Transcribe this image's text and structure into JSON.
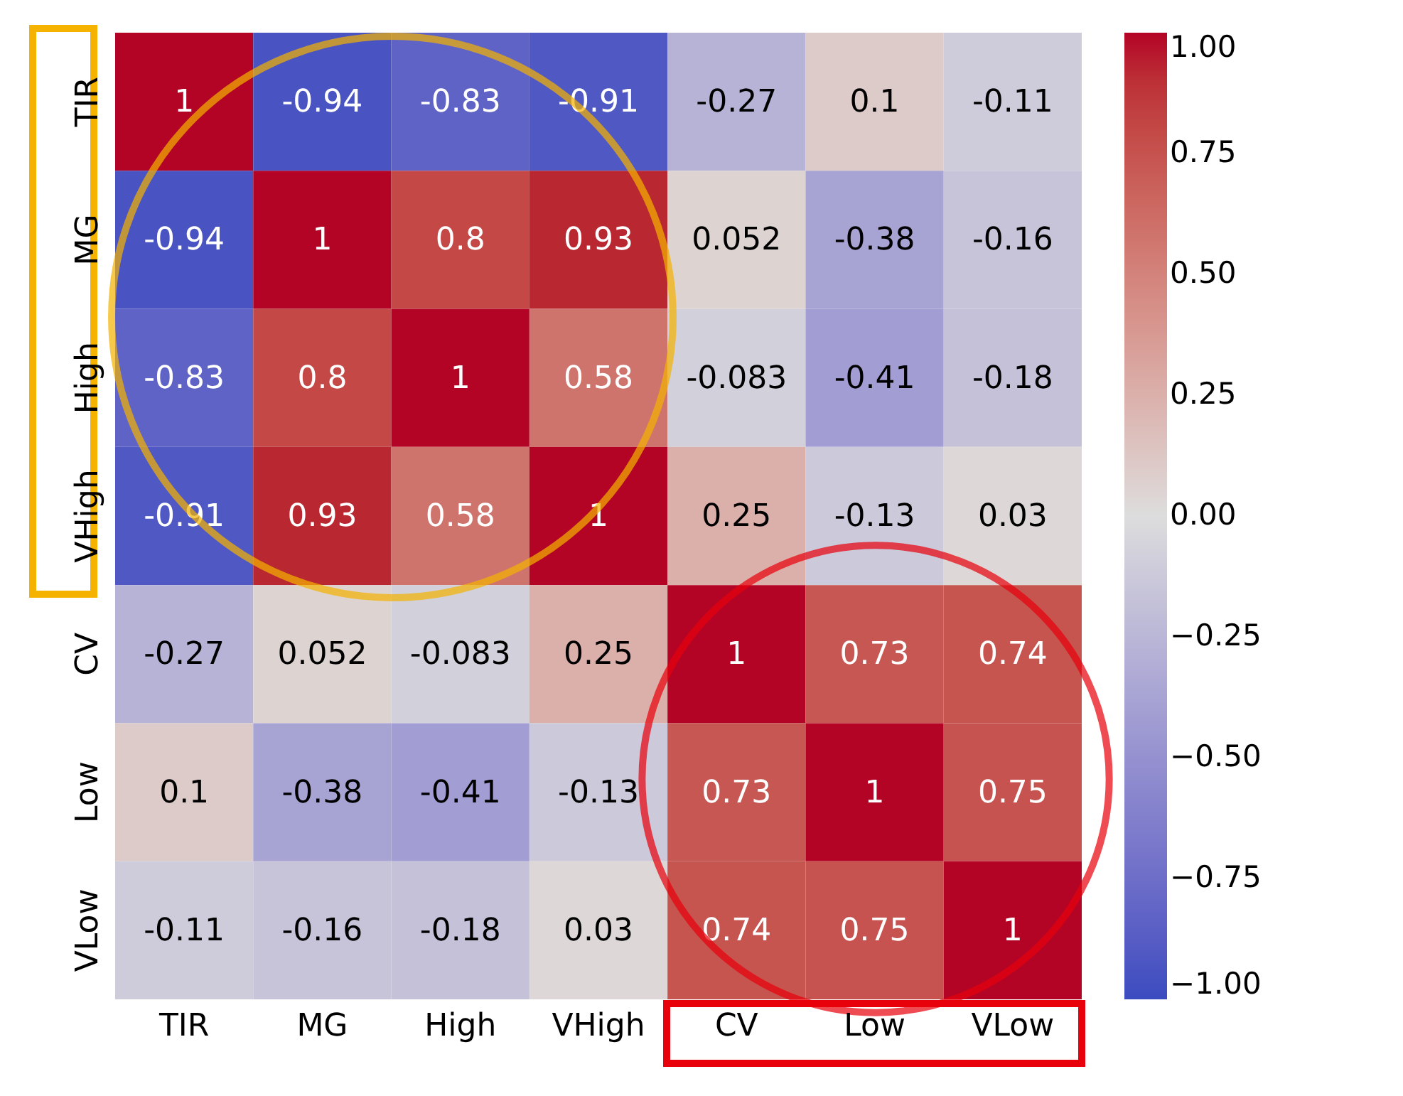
{
  "chart_data": {
    "type": "heatmap",
    "categories": [
      "TIR",
      "MG",
      "High",
      "VHigh",
      "CV",
      "Low",
      "VLow"
    ],
    "y_categories": [
      "TIR",
      "MG",
      "High",
      "VHigh",
      "CV",
      "Low",
      "VLow"
    ],
    "cells": [
      [
        1,
        -0.94,
        -0.83,
        -0.91,
        -0.27,
        0.1,
        -0.11
      ],
      [
        -0.94,
        1,
        0.8,
        0.93,
        0.052,
        -0.38,
        -0.16
      ],
      [
        -0.83,
        0.8,
        1,
        0.58,
        -0.083,
        -0.41,
        -0.18
      ],
      [
        -0.91,
        0.93,
        0.58,
        1,
        0.25,
        -0.13,
        0.03
      ],
      [
        -0.27,
        0.052,
        -0.083,
        0.25,
        1,
        0.73,
        0.74
      ],
      [
        0.1,
        -0.38,
        -0.41,
        -0.13,
        0.73,
        1,
        0.75
      ],
      [
        -0.11,
        -0.16,
        -0.18,
        0.03,
        0.74,
        0.75,
        1
      ]
    ],
    "data_labels": true,
    "clim": [
      -1,
      1
    ],
    "cticks": [
      {
        "value": 1,
        "label": "1.00"
      },
      {
        "value": 0.75,
        "label": "0.75"
      },
      {
        "value": 0.5,
        "label": "0.50"
      },
      {
        "value": 0.25,
        "label": "0.25"
      },
      {
        "value": 0,
        "label": "0.00"
      },
      {
        "value": -0.25,
        "label": "−0.25"
      },
      {
        "value": -0.5,
        "label": "−0.50"
      },
      {
        "value": -0.75,
        "label": "−0.75"
      },
      {
        "value": -1,
        "label": "−1.00"
      }
    ]
  }
}
